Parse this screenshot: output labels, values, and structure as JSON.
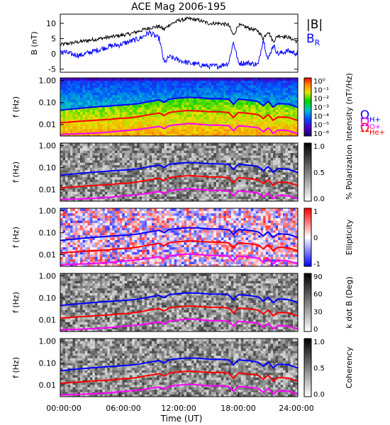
{
  "title": "ACE Mag 2006-195",
  "xlabel": "Time (UT)",
  "x_ticks": [
    "00:00:00",
    "06:00:00",
    "12:00:00",
    "18:00:00",
    "24:00:00"
  ],
  "colors": {
    "B_total": "#000000",
    "B_R": "#0000ff",
    "H": "#0000ff",
    "He": "#ff0000",
    "O": "#ff00ff"
  },
  "chart_data": [
    {
      "type": "line",
      "panel": "magnetic-field",
      "ylabel": "B (nT)",
      "ylim": [
        -6,
        13
      ],
      "y_ticks": [
        "10",
        "5",
        "0",
        "-5"
      ],
      "x_hours": [
        0,
        1,
        2,
        3,
        4,
        5,
        6,
        7,
        8,
        9,
        10,
        10.5,
        11,
        12,
        13,
        14,
        15,
        16,
        17,
        17.5,
        18,
        19,
        20,
        20.5,
        21,
        21.5,
        22,
        23,
        24
      ],
      "series": [
        {
          "name": "|B|",
          "values": [
            3,
            3.5,
            4,
            4.5,
            5,
            5.5,
            6,
            6.5,
            7.5,
            8.5,
            9,
            8,
            9.5,
            11,
            11.5,
            11,
            10,
            10,
            9.5,
            6,
            9.5,
            8.5,
            7.5,
            5,
            7.5,
            4,
            6,
            5.5,
            4
          ]
        },
        {
          "name": "B_R",
          "values": [
            1,
            0,
            -0.5,
            0.5,
            1.5,
            2.5,
            3,
            4,
            5,
            7,
            5,
            -3,
            -1,
            -2,
            -3,
            -3.5,
            -4,
            -4,
            -3,
            4,
            -3,
            -3,
            -3.5,
            5,
            -2,
            3,
            0,
            1,
            0
          ]
        }
      ]
    },
    {
      "type": "heatmap",
      "panel": "intensity",
      "ylabel": "f (Hz)",
      "y_ticks": [
        "1.00",
        "0.10",
        "0.01"
      ],
      "colorbar_label": "Intensity (nT²/Hz)",
      "colorbar_ticks": [
        "10⁰",
        "10⁻¹",
        "10⁻²",
        "10⁻³",
        "10⁻⁴",
        "10⁻⁵",
        "10⁻⁶"
      ],
      "legend": [
        "ΩH+",
        "ΩHe+",
        "ΩO+"
      ]
    },
    {
      "type": "heatmap",
      "panel": "polarization",
      "ylabel": "f (Hz)",
      "y_ticks": [
        "1.00",
        "0.10",
        "0.01"
      ],
      "colorbar_label": "% Polarization",
      "colorbar_ticks": [
        "1.0",
        "0.5",
        "0.0"
      ]
    },
    {
      "type": "heatmap",
      "panel": "ellipticity",
      "ylabel": "f (Hz)",
      "y_ticks": [
        "1.00",
        "0.10",
        "0.01"
      ],
      "colorbar_label": "Ellipticity",
      "colorbar_ticks": [
        "1",
        "0",
        "-1"
      ]
    },
    {
      "type": "heatmap",
      "panel": "k-dot-b",
      "ylabel": "f (Hz)",
      "y_ticks": [
        "1.00",
        "0.10",
        "0.01"
      ],
      "colorbar_label": "k dot B (Deg)",
      "colorbar_ticks": [
        "90",
        "60",
        "30",
        "0"
      ]
    },
    {
      "type": "heatmap",
      "panel": "coherency",
      "ylabel": "f (Hz)",
      "y_ticks": [
        "1.00",
        "0.10",
        "0.01"
      ],
      "colorbar_label": "Coherency",
      "colorbar_ticks": [
        "1.0",
        "0.5",
        "0.0"
      ]
    }
  ],
  "gyrofrequency_lines": {
    "x_hours": [
      0,
      1,
      2,
      3,
      4,
      5,
      6,
      7,
      8,
      9,
      10,
      10.5,
      11,
      12,
      13,
      14,
      15,
      16,
      17,
      17.5,
      18,
      19,
      20,
      20.5,
      21,
      21.5,
      22,
      23,
      24
    ],
    "H": [
      0.045,
      0.05,
      0.055,
      0.06,
      0.065,
      0.07,
      0.075,
      0.08,
      0.09,
      0.11,
      0.13,
      0.1,
      0.14,
      0.16,
      0.17,
      0.165,
      0.15,
      0.15,
      0.14,
      0.08,
      0.14,
      0.13,
      0.11,
      0.07,
      0.11,
      0.06,
      0.09,
      0.085,
      0.06
    ],
    "He": [
      0.012,
      0.013,
      0.014,
      0.015,
      0.016,
      0.017,
      0.019,
      0.02,
      0.023,
      0.028,
      0.033,
      0.025,
      0.035,
      0.04,
      0.043,
      0.041,
      0.038,
      0.038,
      0.035,
      0.02,
      0.035,
      0.032,
      0.028,
      0.018,
      0.028,
      0.015,
      0.022,
      0.021,
      0.015
    ],
    "O": [
      0.0035,
      0.0037,
      0.0038,
      0.004,
      0.0042,
      0.0045,
      0.005,
      0.0055,
      0.006,
      0.007,
      0.0082,
      0.0064,
      0.0088,
      0.01,
      0.011,
      0.0103,
      0.0094,
      0.0094,
      0.0088,
      0.005,
      0.0088,
      0.008,
      0.007,
      0.0045,
      0.007,
      0.0038,
      0.0056,
      0.0053,
      0.0038
    ]
  },
  "legend_labels": {
    "H": "ΩH+",
    "He": "ΩHe+",
    "O": "ΩO+",
    "B_total": "|B|",
    "B_R": "BR"
  }
}
